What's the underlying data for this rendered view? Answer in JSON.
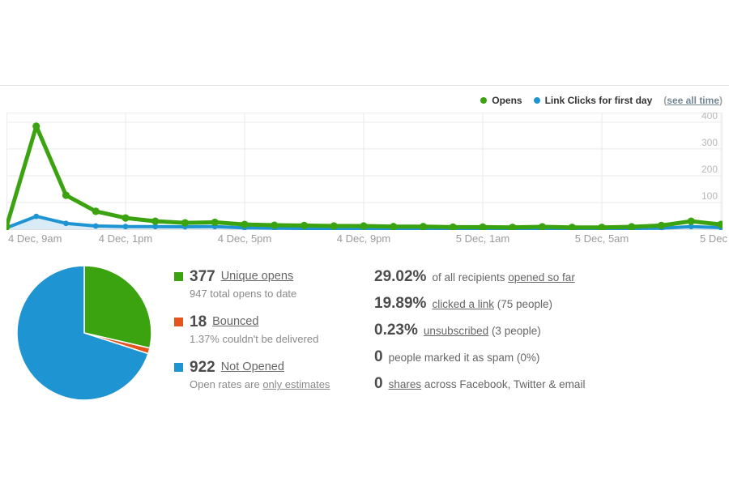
{
  "colors": {
    "green": "#3aa30f",
    "blue": "#1f94d2",
    "orange": "#e5541f",
    "blue_area": "#d9ebf7",
    "grid": "#e9e9e9",
    "plot_border": "#ececec",
    "baseline": "#d4d4d4",
    "y_tick_text": "#b8b8b8"
  },
  "legend": {
    "opens_label": "Opens",
    "clicks_label": "Link Clicks for first day",
    "see_all_time": "see all time"
  },
  "chart_data": [
    {
      "type": "line",
      "title": "Opens and link clicks by hour",
      "x_unit": "hour",
      "x_range_hours": [
        0,
        24
      ],
      "x_ticks": [
        {
          "label": "4 Dec, 9am",
          "hour": 0,
          "align": "left"
        },
        {
          "label": "4 Dec, 1pm",
          "hour": 4,
          "align": "center"
        },
        {
          "label": "4 Dec, 5pm",
          "hour": 8,
          "align": "center"
        },
        {
          "label": "4 Dec, 9pm",
          "hour": 12,
          "align": "center"
        },
        {
          "label": "5 Dec, 1am",
          "hour": 16,
          "align": "center"
        },
        {
          "label": "5 Dec, 5am",
          "hour": 20,
          "align": "center"
        },
        {
          "label": "5 Dec",
          "hour": 24,
          "align": "right"
        }
      ],
      "yticks": [
        100,
        200,
        300,
        400
      ],
      "ylim": [
        0,
        436
      ],
      "grid": true,
      "legend_position": "top-right",
      "series": [
        {
          "name": "Opens",
          "color": "#3aa30f",
          "area": false,
          "values": [
            10,
            385,
            127,
            67,
            42,
            30,
            24,
            26,
            18,
            15,
            14,
            12,
            12,
            10,
            10,
            8,
            8,
            7,
            9,
            7,
            7,
            9,
            14,
            30,
            18
          ]
        },
        {
          "name": "Link Clicks for first day",
          "color": "#1f94d2",
          "area": true,
          "values": [
            5,
            48,
            22,
            12,
            10,
            10,
            9,
            10,
            5,
            4,
            3,
            3,
            3,
            2,
            2,
            2,
            2,
            2,
            3,
            2,
            2,
            3,
            4,
            10,
            6
          ]
        }
      ]
    },
    {
      "type": "pie",
      "title": "Delivery breakdown",
      "start_angle_deg": 0,
      "direction": "clockwise",
      "slices": [
        {
          "label": "Unique opens",
          "value": 377,
          "color": "#3aa30f"
        },
        {
          "label": "Bounced",
          "value": 18,
          "color": "#e5541f"
        },
        {
          "label": "Not Opened",
          "value": 922,
          "color": "#1f94d2"
        }
      ]
    }
  ],
  "left_stats": [
    {
      "color": "#3aa30f",
      "value": "377",
      "link": "Unique opens",
      "sub_pre": "947 total opens to date",
      "sub_link": ""
    },
    {
      "color": "#e5541f",
      "value": "18",
      "link": "Bounced",
      "sub_pre": "1.37% couldn't be delivered",
      "sub_link": ""
    },
    {
      "color": "#1f94d2",
      "value": "922",
      "link": "Not Opened",
      "sub_pre": "Open rates are ",
      "sub_link": "only estimates"
    }
  ],
  "right_stats": [
    {
      "value": "29.02%",
      "pre": "of all recipients ",
      "link": "opened so far",
      "post": ""
    },
    {
      "value": "19.89%",
      "pre": "",
      "link": "clicked a link",
      "post": " (75 people)"
    },
    {
      "value": "0.23%",
      "pre": "",
      "link": "unsubscribed",
      "post": " (3 people)"
    },
    {
      "value": "0",
      "pre": "people marked it as spam (0%)",
      "link": "",
      "post": ""
    },
    {
      "value": "0",
      "pre": "",
      "link": "shares",
      "post": " across Facebook, Twitter & email"
    }
  ]
}
